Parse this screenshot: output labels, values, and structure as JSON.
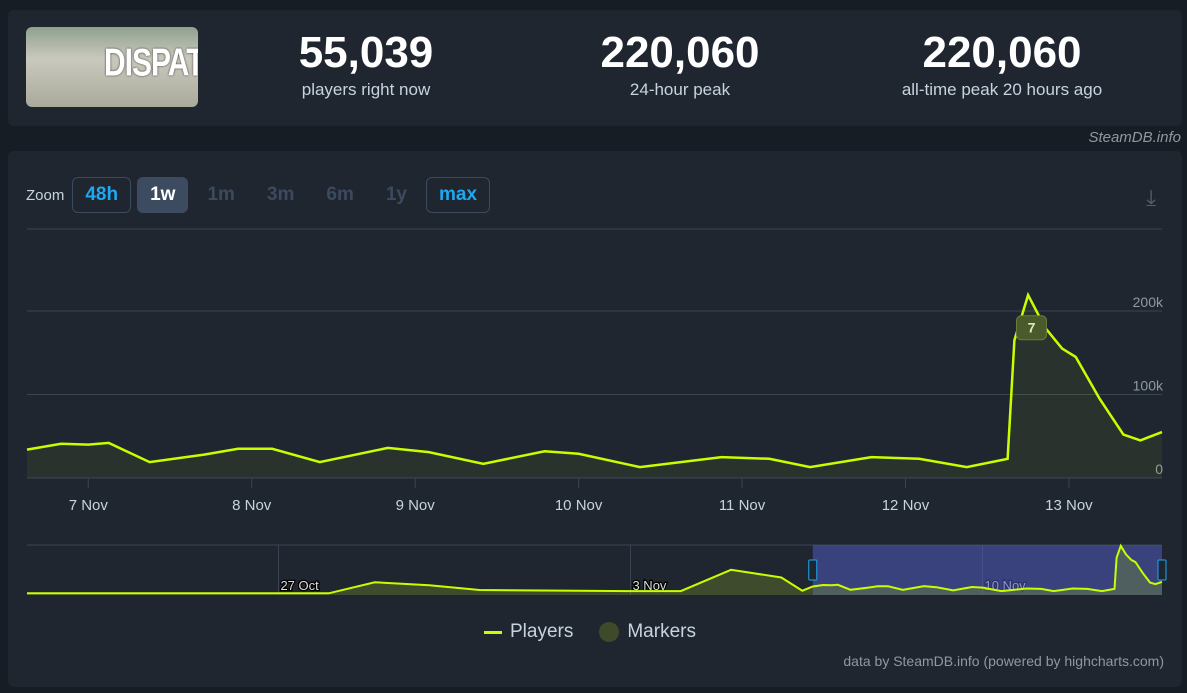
{
  "header": {
    "logo_text": "DISPATCH",
    "stats": [
      {
        "value": "55,039",
        "label": "players right now"
      },
      {
        "value": "220,060",
        "label": "24-hour peak"
      },
      {
        "value": "220,060",
        "label": "all-time peak 20 hours ago"
      }
    ],
    "credit": "SteamDB.info"
  },
  "toolbar": {
    "zoom_label": "Zoom",
    "buttons": [
      {
        "label": "48h",
        "state": "available"
      },
      {
        "label": "1w",
        "state": "selected"
      },
      {
        "label": "1m",
        "state": "disabled"
      },
      {
        "label": "3m",
        "state": "disabled"
      },
      {
        "label": "6m",
        "state": "disabled"
      },
      {
        "label": "1y",
        "state": "disabled"
      },
      {
        "label": "max",
        "state": "available"
      }
    ],
    "download_icon": "download-icon"
  },
  "chart_data": {
    "type": "line",
    "series": [
      {
        "name": "Players",
        "color": "#c8ff00",
        "unit": "players (thousands)",
        "points": [
          [
            "6 Nov 15:00",
            34
          ],
          [
            "6 Nov 20:00",
            41
          ],
          [
            "7 Nov 00:00",
            40
          ],
          [
            "7 Nov 03:00",
            42
          ],
          [
            "7 Nov 09:00",
            19
          ],
          [
            "7 Nov 17:00",
            28
          ],
          [
            "7 Nov 22:00",
            35
          ],
          [
            "8 Nov 03:00",
            35
          ],
          [
            "8 Nov 10:00",
            19
          ],
          [
            "8 Nov 20:00",
            36
          ],
          [
            "9 Nov 02:00",
            31
          ],
          [
            "9 Nov 10:00",
            17
          ],
          [
            "9 Nov 19:00",
            32
          ],
          [
            "10 Nov 00:00",
            29
          ],
          [
            "10 Nov 09:00",
            13
          ],
          [
            "10 Nov 21:00",
            25
          ],
          [
            "11 Nov 04:00",
            23
          ],
          [
            "11 Nov 10:00",
            13
          ],
          [
            "11 Nov 19:00",
            25
          ],
          [
            "12 Nov 02:00",
            23
          ],
          [
            "12 Nov 09:00",
            13
          ],
          [
            "12 Nov 15:00",
            23
          ],
          [
            "12 Nov 16:00",
            165
          ],
          [
            "12 Nov 18:00",
            219
          ],
          [
            "12 Nov 20:30",
            180
          ],
          [
            "12 Nov 23:00",
            155
          ],
          [
            "13 Nov 01:00",
            145
          ],
          [
            "13 Nov 04:30",
            95
          ],
          [
            "13 Nov 08:00",
            52
          ],
          [
            "13 Nov 10:30",
            45
          ],
          [
            "13 Nov 13:40",
            55
          ]
        ]
      }
    ],
    "markers": [
      {
        "label": "7",
        "at": "12 Nov 18:30",
        "value": 180
      }
    ],
    "x_ticks": [
      "7 Nov",
      "8 Nov",
      "9 Nov",
      "10 Nov",
      "11 Nov",
      "12 Nov",
      "13 Nov"
    ],
    "y_ticks": [
      {
        "v": 0,
        "label": "0"
      },
      {
        "v": 100,
        "label": "100k"
      },
      {
        "v": 200,
        "label": "200k"
      }
    ],
    "ylim": [
      0,
      300
    ],
    "grid": true,
    "navigator": {
      "ticks": [
        "27 Oct",
        "3 Nov",
        "10 Nov"
      ],
      "range": [
        "6 Nov 15:00",
        "13 Nov 13:40"
      ],
      "points": [
        [
          "22 Oct 00:00",
          3
        ],
        [
          "28 Oct 00:00",
          3
        ],
        [
          "28 Oct 22:00",
          53
        ],
        [
          "30 Oct 00:00",
          40
        ],
        [
          "31 Oct 00:00",
          18
        ],
        [
          "3 Nov 00:00",
          13
        ],
        [
          "4 Nov 00:00",
          13
        ],
        [
          "5 Nov 00:00",
          110
        ],
        [
          "6 Nov 00:00",
          75
        ],
        [
          "6 Nov 10:00",
          15
        ]
      ]
    },
    "legend": {
      "position": "bottom",
      "items": [
        {
          "label": "Players",
          "color": "#c8ff00"
        },
        {
          "label": "Markers",
          "color": "#3f4a2a"
        }
      ]
    }
  },
  "footer": "data by SteamDB.info (powered by highcharts.com)"
}
